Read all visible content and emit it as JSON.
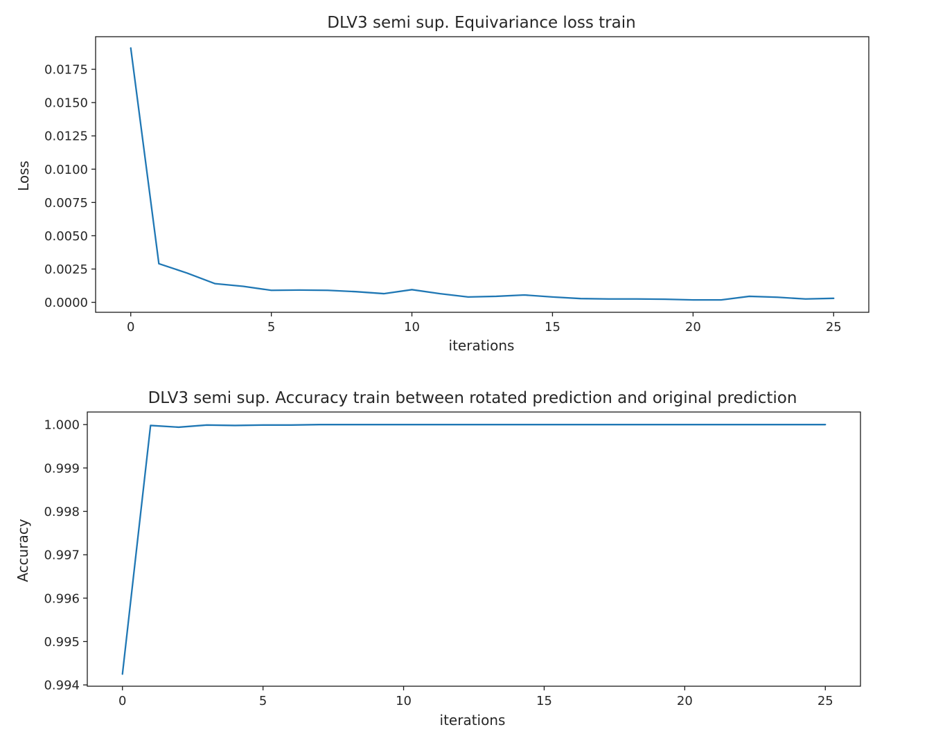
{
  "chart_data": [
    {
      "type": "line",
      "title": "DLV3 semi sup. Equivariance loss train",
      "xlabel": "iterations",
      "ylabel": "Loss",
      "xlim": [
        -1.25,
        26.25
      ],
      "ylim": [
        -0.00075,
        0.01995
      ],
      "xticks": [
        0,
        5,
        10,
        15,
        20,
        25
      ],
      "xtick_labels": [
        "0",
        "5",
        "10",
        "15",
        "20",
        "25"
      ],
      "yticks": [
        0.0,
        0.0025,
        0.005,
        0.0075,
        0.01,
        0.0125,
        0.015,
        0.0175
      ],
      "ytick_labels": [
        "0.0000",
        "0.0025",
        "0.0050",
        "0.0075",
        "0.0100",
        "0.0125",
        "0.0150",
        "0.0175"
      ],
      "grid": false,
      "color": "#1f77b4",
      "series": [
        {
          "x": [
            0,
            1,
            2,
            3,
            4,
            5,
            6,
            7,
            8,
            9,
            10,
            11,
            12,
            13,
            14,
            15,
            16,
            17,
            18,
            19,
            20,
            21,
            22,
            23,
            24,
            25
          ],
          "values": [
            0.0191,
            0.0029,
            0.0022,
            0.0014,
            0.0012,
            0.0009,
            0.00092,
            0.0009,
            0.0008,
            0.00065,
            0.00095,
            0.00065,
            0.0004,
            0.00045,
            0.00055,
            0.0004,
            0.00028,
            0.00025,
            0.00025,
            0.00023,
            0.00018,
            0.00018,
            0.00045,
            0.00038,
            0.00025,
            0.0003
          ]
        }
      ]
    },
    {
      "type": "line",
      "title": "DLV3 semi sup. Accuracy train between rotated prediction and original prediction",
      "xlabel": "iterations",
      "ylabel": "Accuracy",
      "xlim": [
        -1.25,
        26.25
      ],
      "ylim": [
        0.99397,
        1.00029
      ],
      "xticks": [
        0,
        5,
        10,
        15,
        20,
        25
      ],
      "xtick_labels": [
        "0",
        "5",
        "10",
        "15",
        "20",
        "25"
      ],
      "yticks": [
        0.994,
        0.995,
        0.996,
        0.997,
        0.998,
        0.999,
        1.0
      ],
      "ytick_labels": [
        "0.994",
        "0.995",
        "0.996",
        "0.997",
        "0.998",
        "0.999",
        "1.000"
      ],
      "grid": false,
      "color": "#1f77b4",
      "series": [
        {
          "x": [
            0,
            1,
            2,
            3,
            4,
            5,
            6,
            7,
            8,
            9,
            10,
            11,
            12,
            13,
            14,
            15,
            16,
            17,
            18,
            19,
            20,
            21,
            22,
            23,
            24,
            25
          ],
          "values": [
            0.99425,
            0.99998,
            0.99994,
            0.99999,
            0.99998,
            0.99999,
            0.99999,
            1.0,
            1.0,
            1.0,
            1.0,
            1.0,
            1.0,
            1.0,
            1.0,
            1.0,
            1.0,
            1.0,
            1.0,
            1.0,
            1.0,
            1.0,
            1.0,
            1.0,
            1.0,
            1.0
          ]
        }
      ]
    }
  ]
}
